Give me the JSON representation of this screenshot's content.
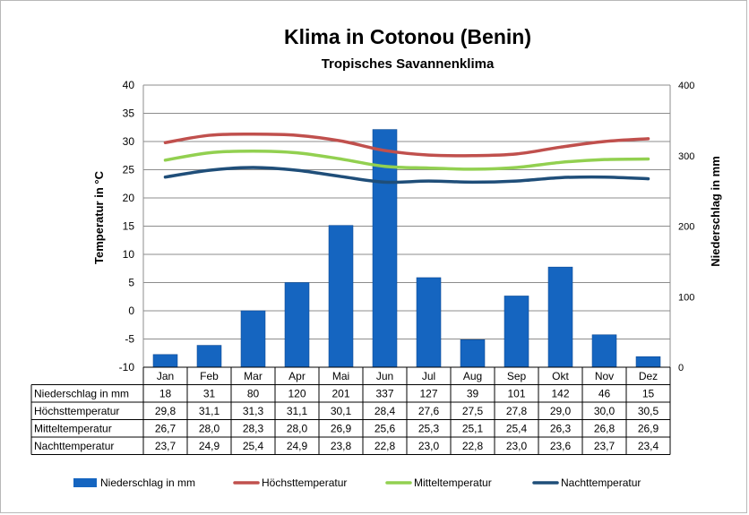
{
  "chart_data": {
    "type": "bar",
    "title": "Klima in Cotonou (Benin)",
    "subtitle": "Tropisches Savannenklima",
    "ylabel": "Temperatur in °C",
    "ylabel_right": "Niederschlag in mm",
    "ylim": [
      -10,
      40
    ],
    "ylim_right": [
      0,
      400
    ],
    "yticks": [
      -10,
      -5,
      0,
      5,
      10,
      15,
      20,
      25,
      30,
      35,
      40
    ],
    "yticks_right": [
      0,
      100,
      200,
      300,
      400
    ],
    "grid": true,
    "legend_position": "bottom",
    "categories": [
      "Jan",
      "Feb",
      "Mar",
      "Apr",
      "Mai",
      "Jun",
      "Jul",
      "Aug",
      "Sep",
      "Okt",
      "Nov",
      "Dez"
    ],
    "series": [
      {
        "name": "Niederschlag in mm",
        "type": "bar",
        "axis": "right",
        "color": "#1565c0",
        "values": [
          18,
          31,
          80,
          120,
          201,
          337,
          127,
          39,
          101,
          142,
          46,
          15
        ],
        "labels": [
          "18",
          "31",
          "80",
          "120",
          "201",
          "337",
          "127",
          "39",
          "101",
          "142",
          "46",
          "15"
        ]
      },
      {
        "name": "Höchsttemperatur",
        "type": "line",
        "axis": "left",
        "color": "#c0504d",
        "values": [
          29.8,
          31.1,
          31.3,
          31.1,
          30.1,
          28.4,
          27.6,
          27.5,
          27.8,
          29.0,
          30.0,
          30.5
        ],
        "labels": [
          "29,8",
          "31,1",
          "31,3",
          "31,1",
          "30,1",
          "28,4",
          "27,6",
          "27,5",
          "27,8",
          "29,0",
          "30,0",
          "30,5"
        ]
      },
      {
        "name": "Mitteltemperatur",
        "type": "line",
        "axis": "left",
        "color": "#92d050",
        "values": [
          26.7,
          28.0,
          28.3,
          28.0,
          26.9,
          25.6,
          25.3,
          25.1,
          25.4,
          26.3,
          26.8,
          26.9
        ],
        "labels": [
          "26,7",
          "28,0",
          "28,3",
          "28,0",
          "26,9",
          "25,6",
          "25,3",
          "25,1",
          "25,4",
          "26,3",
          "26,8",
          "26,9"
        ]
      },
      {
        "name": "Nachttemperatur",
        "type": "line",
        "axis": "left",
        "color": "#1f4e79",
        "values": [
          23.7,
          24.9,
          25.4,
          24.9,
          23.8,
          22.8,
          23.0,
          22.8,
          23.0,
          23.6,
          23.7,
          23.4
        ],
        "labels": [
          "23,7",
          "24,9",
          "25,4",
          "24,9",
          "23,8",
          "22,8",
          "23,0",
          "22,8",
          "23,0",
          "23,6",
          "23,7",
          "23,4"
        ]
      }
    ]
  }
}
